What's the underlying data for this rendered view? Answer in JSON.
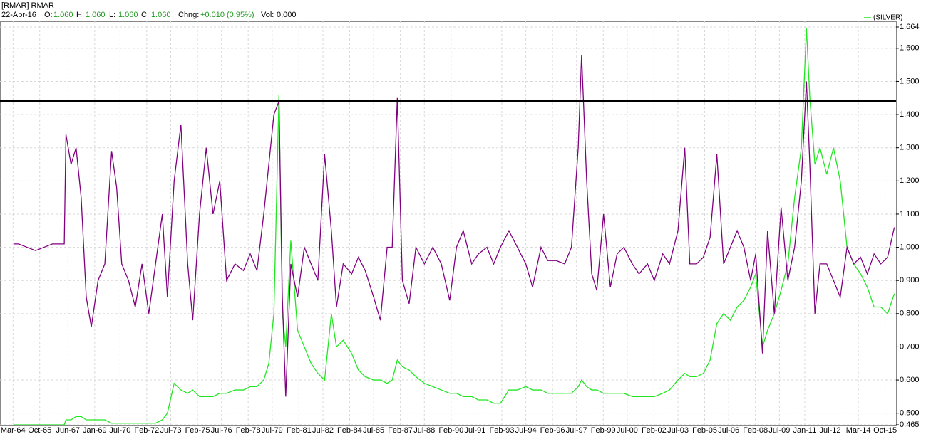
{
  "chart_data": {
    "type": "line",
    "header": {
      "symbol": "[RMAR] RMAR",
      "date": "22-Apr-16",
      "fields": [
        {
          "label": "O:",
          "value": "1.060"
        },
        {
          "label": "H:",
          "value": "1.060"
        },
        {
          "label": "L:",
          "value": "1.060"
        },
        {
          "label": "C:",
          "value": "1.060"
        },
        {
          "label": "Chng:",
          "value": "+0.010 (0.95%)"
        },
        {
          "label": "Vol:",
          "value": "0,000"
        }
      ]
    },
    "x": [
      1964.2,
      1964.5,
      1965.0,
      1965.5,
      1966.0,
      1966.5,
      1967.2,
      1967.3,
      1967.6,
      1967.9,
      1968.2,
      1968.5,
      1968.8,
      1969.2,
      1969.6,
      1970.0,
      1970.3,
      1970.6,
      1971.0,
      1971.4,
      1971.8,
      1972.2,
      1972.6,
      1973.0,
      1973.3,
      1973.7,
      1974.1,
      1974.5,
      1974.8,
      1975.2,
      1975.6,
      1976.0,
      1976.4,
      1976.8,
      1977.3,
      1977.8,
      1978.2,
      1978.6,
      1979.0,
      1979.3,
      1979.6,
      1979.9,
      1980.1,
      1980.3,
      1980.6,
      1981.0,
      1981.4,
      1981.8,
      1982.2,
      1982.6,
      1983.0,
      1983.3,
      1983.7,
      1984.2,
      1984.6,
      1985.0,
      1985.5,
      1985.9,
      1986.3,
      1986.6,
      1986.9,
      1987.2,
      1987.6,
      1988.0,
      1988.5,
      1989.0,
      1989.5,
      1990.0,
      1990.4,
      1990.8,
      1991.3,
      1991.7,
      1992.2,
      1992.6,
      1993.0,
      1993.5,
      1994.0,
      1994.5,
      1994.9,
      1995.4,
      1995.8,
      1996.3,
      1996.8,
      1997.2,
      1997.6,
      1997.8,
      1998.1,
      1998.4,
      1998.7,
      1999.1,
      1999.5,
      1999.9,
      2000.3,
      2000.8,
      2001.2,
      2001.7,
      2002.1,
      2002.6,
      2003.0,
      2003.5,
      2003.9,
      2004.2,
      2004.6,
      2005.0,
      2005.4,
      2005.8,
      2006.2,
      2006.6,
      2007.0,
      2007.4,
      2007.8,
      2008.1,
      2008.5,
      2008.8,
      2009.2,
      2009.6,
      2010.0,
      2010.4,
      2010.8,
      2011.1,
      2011.3,
      2011.6,
      2011.9,
      2012.3,
      2012.7,
      2013.1,
      2013.5,
      2013.9,
      2014.3,
      2014.7,
      2015.1,
      2015.5,
      2015.9,
      2016.3
    ],
    "series": [
      {
        "name": "(SILVER)",
        "color": "#22e622",
        "values": [
          0.465,
          0.465,
          0.465,
          0.465,
          0.465,
          0.465,
          0.465,
          0.48,
          0.48,
          0.49,
          0.49,
          0.48,
          0.48,
          0.48,
          0.48,
          0.47,
          0.47,
          0.47,
          0.47,
          0.47,
          0.47,
          0.47,
          0.47,
          0.48,
          0.5,
          0.59,
          0.57,
          0.56,
          0.57,
          0.55,
          0.55,
          0.55,
          0.56,
          0.56,
          0.57,
          0.57,
          0.58,
          0.58,
          0.6,
          0.65,
          0.8,
          1.46,
          0.8,
          0.7,
          1.02,
          0.75,
          0.7,
          0.65,
          0.62,
          0.6,
          0.8,
          0.7,
          0.72,
          0.68,
          0.63,
          0.61,
          0.6,
          0.6,
          0.59,
          0.6,
          0.66,
          0.64,
          0.63,
          0.61,
          0.59,
          0.58,
          0.57,
          0.56,
          0.56,
          0.55,
          0.55,
          0.54,
          0.54,
          0.53,
          0.53,
          0.57,
          0.57,
          0.58,
          0.57,
          0.57,
          0.56,
          0.56,
          0.56,
          0.56,
          0.58,
          0.6,
          0.58,
          0.57,
          0.57,
          0.56,
          0.56,
          0.56,
          0.56,
          0.55,
          0.55,
          0.55,
          0.55,
          0.56,
          0.57,
          0.6,
          0.62,
          0.61,
          0.61,
          0.62,
          0.66,
          0.77,
          0.8,
          0.78,
          0.82,
          0.84,
          0.88,
          0.92,
          0.7,
          0.75,
          0.8,
          0.87,
          0.95,
          1.15,
          1.3,
          1.66,
          1.45,
          1.25,
          1.3,
          1.22,
          1.3,
          1.2,
          1.0,
          0.95,
          0.92,
          0.88,
          0.82,
          0.82,
          0.8,
          0.86
        ]
      },
      {
        "color": "#800080",
        "values": [
          1.01,
          1.01,
          1.0,
          0.99,
          1.0,
          1.01,
          1.01,
          1.34,
          1.25,
          1.3,
          1.15,
          0.85,
          0.76,
          0.9,
          0.95,
          1.29,
          1.18,
          0.95,
          0.9,
          0.82,
          0.95,
          0.8,
          0.95,
          1.1,
          0.85,
          1.2,
          1.37,
          0.95,
          0.78,
          1.1,
          1.3,
          1.1,
          1.2,
          0.9,
          0.95,
          0.93,
          0.98,
          0.93,
          1.1,
          1.25,
          1.4,
          1.44,
          0.85,
          0.55,
          0.95,
          0.85,
          1.0,
          0.95,
          0.9,
          1.28,
          1.05,
          0.82,
          0.95,
          0.92,
          0.97,
          0.93,
          0.85,
          0.78,
          1.0,
          1.0,
          1.45,
          0.9,
          0.83,
          1.0,
          0.95,
          1.0,
          0.95,
          0.84,
          1.0,
          1.05,
          0.95,
          0.98,
          1.0,
          0.95,
          1.0,
          1.05,
          1.0,
          0.95,
          0.88,
          1.0,
          0.96,
          0.96,
          0.95,
          1.0,
          1.3,
          1.58,
          1.2,
          0.92,
          0.87,
          1.1,
          0.88,
          0.98,
          1.0,
          0.95,
          0.92,
          0.95,
          0.9,
          0.98,
          0.95,
          1.05,
          1.3,
          0.95,
          0.95,
          0.97,
          1.03,
          1.28,
          0.95,
          1.0,
          1.05,
          1.0,
          0.9,
          0.98,
          0.68,
          1.05,
          0.8,
          1.12,
          0.9,
          1.0,
          1.2,
          1.5,
          1.25,
          0.8,
          0.95,
          0.95,
          0.9,
          0.85,
          1.0,
          0.95,
          0.97,
          0.92,
          0.98,
          0.95,
          0.97,
          1.06
        ]
      }
    ],
    "reference_line": 1.441,
    "xlim": [
      1963.4,
      2016.4
    ],
    "xticks": [
      {
        "value": 1964.17,
        "label": "Mar-64"
      },
      {
        "value": 1965.75,
        "label": "Oct-65"
      },
      {
        "value": 1967.42,
        "label": "Jun-67"
      },
      {
        "value": 1969.0,
        "label": "Jan-69"
      },
      {
        "value": 1970.5,
        "label": "Jul-70"
      },
      {
        "value": 1972.08,
        "label": "Feb-72"
      },
      {
        "value": 1973.5,
        "label": "Jul-73"
      },
      {
        "value": 1975.08,
        "label": "Feb-75"
      },
      {
        "value": 1976.5,
        "label": "Jul-76"
      },
      {
        "value": 1978.08,
        "label": "Feb-78"
      },
      {
        "value": 1979.5,
        "label": "Jul-79"
      },
      {
        "value": 1981.08,
        "label": "Feb-81"
      },
      {
        "value": 1982.5,
        "label": "Jul-82"
      },
      {
        "value": 1984.08,
        "label": "Feb-84"
      },
      {
        "value": 1985.5,
        "label": "Jul-85"
      },
      {
        "value": 1987.08,
        "label": "Feb-87"
      },
      {
        "value": 1988.5,
        "label": "Jul-88"
      },
      {
        "value": 1990.08,
        "label": "Feb-90"
      },
      {
        "value": 1991.5,
        "label": "Jul-91"
      },
      {
        "value": 1993.08,
        "label": "Feb-93"
      },
      {
        "value": 1994.5,
        "label": "Jul-94"
      },
      {
        "value": 1996.08,
        "label": "Feb-96"
      },
      {
        "value": 1997.5,
        "label": "Jul-97"
      },
      {
        "value": 1999.08,
        "label": "Feb-99"
      },
      {
        "value": 2000.5,
        "label": "Jul-00"
      },
      {
        "value": 2002.08,
        "label": "Feb-02"
      },
      {
        "value": 2003.5,
        "label": "Jul-03"
      },
      {
        "value": 2005.08,
        "label": "Feb-05"
      },
      {
        "value": 2006.5,
        "label": "Jul-06"
      },
      {
        "value": 2008.08,
        "label": "Feb-08"
      },
      {
        "value": 2009.5,
        "label": "Jul-09"
      },
      {
        "value": 2011.0,
        "label": "Jan-11"
      },
      {
        "value": 2012.5,
        "label": "Jul-12"
      },
      {
        "value": 2014.17,
        "label": "Mar-14"
      },
      {
        "value": 2015.75,
        "label": "Oct-15"
      }
    ],
    "ylim": [
      0.465,
      1.664
    ],
    "yticks": [
      {
        "value": 0.465,
        "label": "0.465"
      },
      {
        "value": 0.5,
        "label": "0.500"
      },
      {
        "value": 0.6,
        "label": "0.600"
      },
      {
        "value": 0.7,
        "label": "0.700"
      },
      {
        "value": 0.8,
        "label": "0.800"
      },
      {
        "value": 0.9,
        "label": "0.900"
      },
      {
        "value": 1.0,
        "label": "1.000"
      },
      {
        "value": 1.1,
        "label": "1.100"
      },
      {
        "value": 1.2,
        "label": "1.200"
      },
      {
        "value": 1.3,
        "label": "1.300"
      },
      {
        "value": 1.4,
        "label": "1.400"
      },
      {
        "value": 1.5,
        "label": "1.500"
      },
      {
        "value": 1.6,
        "label": "1.600"
      },
      {
        "value": 1.664,
        "label": "1.664"
      }
    ],
    "grid": true,
    "legend": "top-right"
  }
}
